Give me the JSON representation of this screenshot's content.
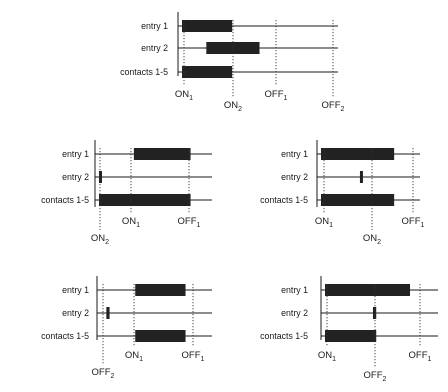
{
  "rows": {
    "entry1": "entry 1",
    "entry2": "entry 2",
    "contacts": "contacts 1-5"
  },
  "events": {
    "on1": {
      "base": "ON",
      "sub": "1"
    },
    "on2": {
      "base": "ON",
      "sub": "2"
    },
    "off1": {
      "base": "OFF",
      "sub": "1"
    },
    "off2": {
      "base": "OFF",
      "sub": "2"
    }
  },
  "diagrams": [
    {
      "id": "top",
      "intervals": {
        "entry1": [
          0,
          0.33
        ],
        "entry2": [
          0.16,
          0.51
        ],
        "contacts": [
          0,
          0.33
        ]
      },
      "events": [
        "on1",
        "on2",
        "off1",
        "off2"
      ]
    },
    {
      "id": "middle-left",
      "intervals": {
        "entry1": [
          0.32,
          0.84
        ],
        "entry2": [
          0,
          0.02
        ],
        "contacts": [
          0,
          0.84
        ]
      },
      "events": [
        "on2",
        "on1",
        "off1"
      ]
    },
    {
      "id": "middle-right",
      "intervals": {
        "entry1": [
          0,
          0.77
        ],
        "entry2": [
          0.41,
          0.44
        ],
        "contacts": [
          0,
          0.77
        ]
      },
      "events": [
        "on1",
        "on2",
        "off1"
      ]
    },
    {
      "id": "bottom-left",
      "intervals": {
        "entry1": [
          0.32,
          0.79
        ],
        "entry2": [
          0.05,
          0.08
        ],
        "contacts": [
          0.32,
          0.79
        ]
      },
      "events": [
        "off2",
        "on1",
        "off1"
      ]
    },
    {
      "id": "bottom-right",
      "intervals": {
        "entry1": [
          0,
          0.78
        ],
        "entry2": [
          0.44,
          0.47
        ],
        "contacts": [
          0,
          0.47
        ]
      },
      "events": [
        "on1",
        "off2",
        "off1"
      ]
    }
  ]
}
